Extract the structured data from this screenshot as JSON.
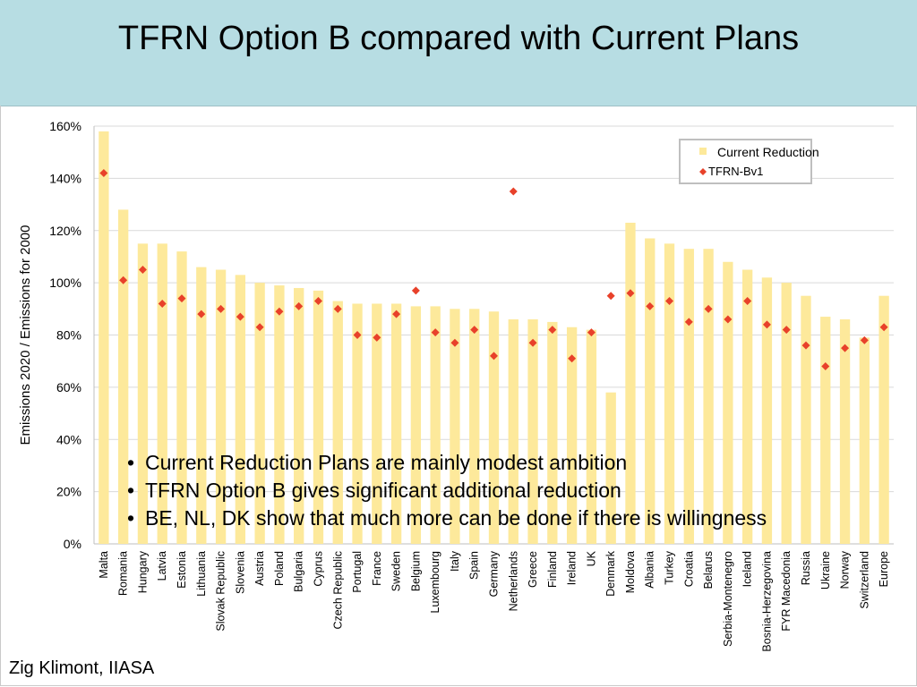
{
  "slide": {
    "title": "TFRN Option B compared with Current Plans",
    "author": "Zig Klimont, IIASA",
    "bullets": [
      "Current Reduction Plans are mainly modest ambition",
      "TFRN Option B gives significant additional reduction",
      "BE, NL, DK show that much more can be done if there is willingness"
    ]
  },
  "colors": {
    "header_bg": "#b7dde3",
    "bar": "#fde99b",
    "marker": "#e8412a",
    "grid": "#d9d9d9"
  },
  "chart_data": {
    "type": "bar",
    "title": "",
    "xlabel": "",
    "ylabel": "Emissions 2020 / Emissions for 2000",
    "ylim": [
      0,
      160
    ],
    "yticks": [
      "0%",
      "20%",
      "40%",
      "60%",
      "80%",
      "100%",
      "120%",
      "140%",
      "160%"
    ],
    "grid": true,
    "legend_position": "top-right",
    "categories": [
      "Malta",
      "Romania",
      "Hungary",
      "Latvia",
      "Estonia",
      "Lithuania",
      "Slovak Republic",
      "Slovenia",
      "Austria",
      "Poland",
      "Bulgaria",
      "Cyprus",
      "Czech Republic",
      "Portugal",
      "France",
      "Sweden",
      "Belgium",
      "Luxembourg",
      "Italy",
      "Spain",
      "Germany",
      "Netherlands",
      "Greece",
      "Finland",
      "Ireland",
      "UK",
      "Denmark",
      "Moldova",
      "Albania",
      "Turkey",
      "Croatia",
      "Belarus",
      "Serbia-Montenegro",
      "Iceland",
      "Bosnia-Herzegovina",
      "FYR Macedonia",
      "Russia",
      "Ukraine",
      "Norway",
      "Switzerland",
      "Europe"
    ],
    "series": [
      {
        "name": "Current Reduction",
        "kind": "bar",
        "values": [
          158,
          128,
          115,
          115,
          112,
          106,
          105,
          103,
          100,
          99,
          98,
          97,
          93,
          92,
          92,
          92,
          91,
          91,
          90,
          90,
          89,
          86,
          86,
          85,
          83,
          82,
          58,
          123,
          117,
          115,
          113,
          113,
          108,
          105,
          102,
          100,
          95,
          87,
          86,
          79,
          95
        ]
      },
      {
        "name": "TFRN-Bv1",
        "kind": "marker",
        "values": [
          142,
          101,
          105,
          92,
          94,
          88,
          90,
          87,
          83,
          89,
          91,
          93,
          90,
          80,
          79,
          88,
          97,
          81,
          77,
          82,
          72,
          135,
          77,
          82,
          71,
          81,
          95,
          96,
          91,
          93,
          85,
          90,
          86,
          93,
          84,
          82,
          76,
          68,
          75,
          78,
          83
        ]
      }
    ]
  }
}
